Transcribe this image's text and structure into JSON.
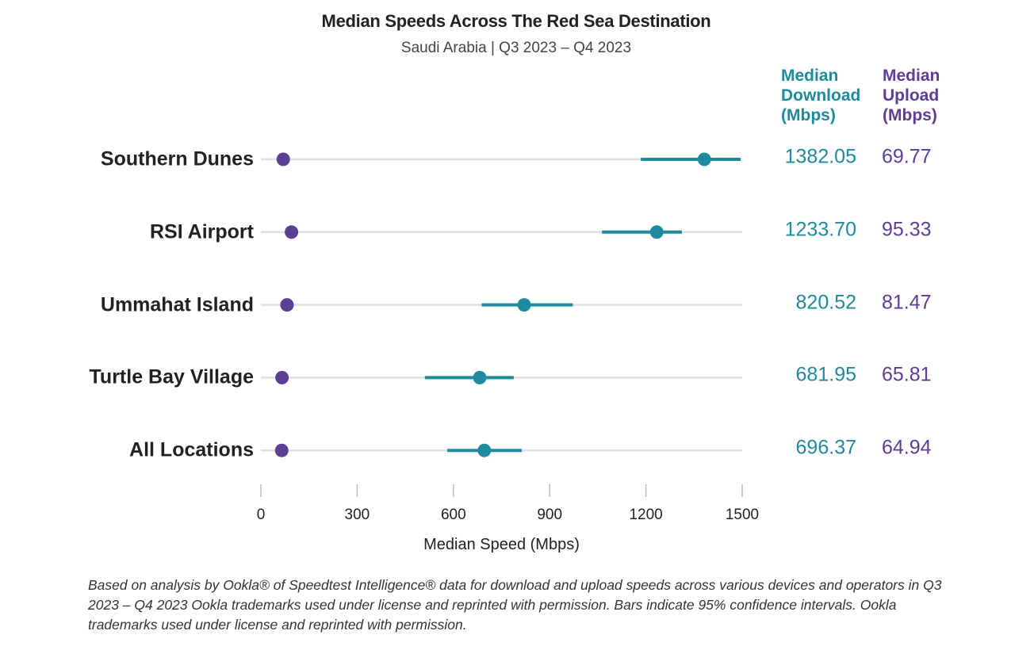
{
  "chart_data": {
    "type": "dot-interval",
    "title": "Median Speeds Across The Red Sea Destination",
    "subtitle": "Saudi Arabia | Q3 2023 – Q4 2023",
    "xlabel": "Median Speed (Mbps)",
    "xlim": [
      0,
      1500
    ],
    "xticks": [
      0,
      300,
      600,
      900,
      1200,
      1500
    ],
    "tick_labels": [
      "0",
      "300",
      "600",
      "900",
      "1200",
      "1500"
    ],
    "grid": false,
    "column_headers": {
      "download": [
        "Median",
        "Download",
        "(Mbps)"
      ],
      "upload": [
        "Median",
        "Upload",
        "(Mbps)"
      ]
    },
    "colors": {
      "download": "#1e8a9e",
      "upload": "#5e3d94",
      "track": "#e0e0e3"
    },
    "categories": [
      "Southern Dunes",
      "RSI Airport",
      "Ummahat Island",
      "Turtle Bay Village",
      "All Locations"
    ],
    "series": [
      {
        "name": "Median Download (Mbps)",
        "values": [
          1382.05,
          1233.7,
          820.52,
          681.95,
          696.37
        ],
        "labels": [
          "1382.05",
          "1233.70",
          "820.52",
          "681.95",
          "696.37"
        ],
        "ci_low": [
          1184,
          1063,
          688,
          511,
          581
        ],
        "ci_high": [
          1495,
          1312,
          972,
          788,
          813
        ]
      },
      {
        "name": "Median Upload (Mbps)",
        "values": [
          69.77,
          95.33,
          81.47,
          65.81,
          64.94
        ],
        "labels": [
          "69.77",
          "95.33",
          "81.47",
          "65.81",
          "64.94"
        ]
      }
    ]
  },
  "footnote": "Based on analysis by Ookla® of Speedtest Intelligence® data for download and upload speeds across various devices and operators in Q3 2023 – Q4 2023 Ookla trademarks used under license and reprinted with permission. Bars indicate 95% confidence intervals. Ookla trademarks used under license and reprinted with permission."
}
